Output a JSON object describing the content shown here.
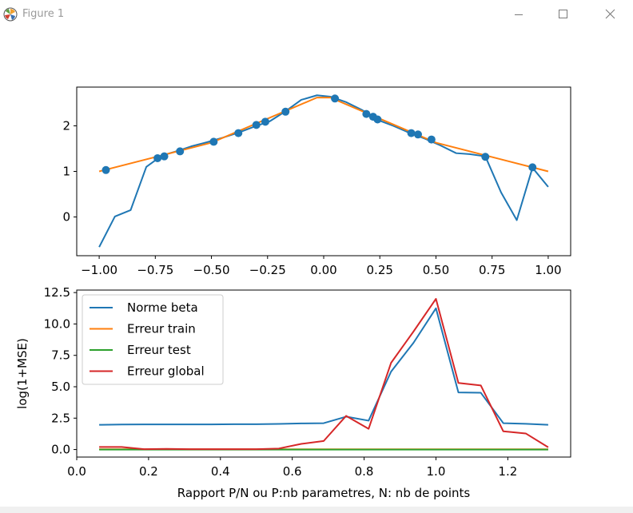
{
  "window": {
    "title": "Figure 1"
  },
  "chart_data": [
    {
      "type": "scatter+line",
      "title": "",
      "xlabel": "",
      "ylabel": "",
      "xlim": [
        -1.1,
        1.1
      ],
      "ylim": [
        -0.85,
        2.85
      ],
      "xticks": [
        -1.0,
        -0.75,
        -0.5,
        -0.25,
        0.0,
        0.25,
        0.5,
        0.75,
        1.0
      ],
      "xtick_labels": [
        "−1.00",
        "−0.75",
        "−0.50",
        "−0.25",
        "0.00",
        "0.25",
        "0.50",
        "0.75",
        "1.00"
      ],
      "yticks": [
        0,
        1,
        2
      ],
      "ytick_labels": [
        "0",
        "1",
        "2"
      ],
      "grid": false,
      "series": [
        {
          "kind": "line",
          "color": "#1f77b4",
          "x": [
            -1.0,
            -0.93,
            -0.86,
            -0.79,
            -0.72,
            -0.65,
            -0.59,
            -0.52,
            -0.45,
            -0.38,
            -0.31,
            -0.24,
            -0.17,
            -0.1,
            -0.03,
            0.03,
            0.1,
            0.17,
            0.24,
            0.31,
            0.38,
            0.45,
            0.52,
            0.59,
            0.65,
            0.72,
            0.79,
            0.86,
            0.93,
            1.0
          ],
          "y": [
            -0.66,
            0.01,
            0.15,
            1.1,
            1.35,
            1.45,
            1.55,
            1.64,
            1.74,
            1.85,
            1.98,
            2.1,
            2.32,
            2.57,
            2.67,
            2.64,
            2.52,
            2.35,
            2.13,
            2.0,
            1.85,
            1.72,
            1.57,
            1.4,
            1.38,
            1.33,
            0.54,
            -0.07,
            1.08,
            0.66
          ]
        },
        {
          "kind": "line",
          "color": "#ff7f0e",
          "x": [
            -1.0,
            -0.5,
            -0.03,
            0.03,
            0.5,
            1.0
          ],
          "y": [
            1.0,
            1.63,
            2.62,
            2.62,
            1.63,
            1.0
          ]
        },
        {
          "kind": "scatter",
          "color": "#1f77b4",
          "x": [
            -0.97,
            -0.74,
            -0.71,
            -0.64,
            -0.49,
            -0.38,
            -0.3,
            -0.26,
            -0.17,
            0.05,
            0.19,
            0.22,
            0.24,
            0.39,
            0.42,
            0.48,
            0.72,
            0.93
          ],
          "y": [
            1.03,
            1.29,
            1.33,
            1.44,
            1.65,
            1.84,
            2.02,
            2.09,
            2.31,
            2.6,
            2.26,
            2.2,
            2.14,
            1.84,
            1.81,
            1.7,
            1.32,
            1.09
          ]
        }
      ]
    },
    {
      "type": "line",
      "title": "",
      "xlabel": "Rapport P/N ou P:nb parametres, N: nb de points",
      "ylabel": "log(1+MSE)",
      "xlim": [
        0.0,
        1.375
      ],
      "ylim": [
        -0.6,
        12.7
      ],
      "xticks": [
        0.0,
        0.2,
        0.4,
        0.6,
        0.8,
        1.0,
        1.2
      ],
      "xtick_labels": [
        "0.0",
        "0.2",
        "0.4",
        "0.6",
        "0.8",
        "1.0",
        "1.2"
      ],
      "yticks": [
        0.0,
        2.5,
        5.0,
        7.5,
        10.0,
        12.5
      ],
      "ytick_labels": [
        "0.0",
        "2.5",
        "5.0",
        "7.5",
        "10.0",
        "12.5"
      ],
      "grid": false,
      "legend": "upper-left",
      "x": [
        0.0625,
        0.125,
        0.1875,
        0.25,
        0.3125,
        0.375,
        0.4375,
        0.5,
        0.5625,
        0.625,
        0.6875,
        0.75,
        0.8125,
        0.875,
        0.9375,
        1.0,
        1.0625,
        1.125,
        1.1875,
        1.25,
        1.3125
      ],
      "series": [
        {
          "name": "Norme beta",
          "color": "#1f77b4",
          "values": [
            1.97,
            1.99,
            2.0,
            2.0,
            2.0,
            2.0,
            2.02,
            2.02,
            2.04,
            2.08,
            2.1,
            2.62,
            2.3,
            6.2,
            8.5,
            11.25,
            4.55,
            4.52,
            2.1,
            2.05,
            1.97
          ]
        },
        {
          "name": "Erreur train",
          "color": "#ff7f0e",
          "values": [
            0.02,
            0.02,
            0.02,
            0.02,
            0.02,
            0.02,
            0.02,
            0.02,
            0.02,
            0.02,
            0.02,
            0.02,
            0.02,
            0.02,
            0.02,
            0.02,
            0.02,
            0.02,
            0.02,
            0.02,
            0.02
          ]
        },
        {
          "name": "Erreur test",
          "color": "#2ca02c",
          "values": [
            0.0,
            0.0,
            0.0,
            0.0,
            0.0,
            0.0,
            0.0,
            0.0,
            0.0,
            0.0,
            0.0,
            0.0,
            0.0,
            0.0,
            0.0,
            0.0,
            0.0,
            0.0,
            0.0,
            0.0,
            0.0
          ]
        },
        {
          "name": "Erreur global",
          "color": "#d62728",
          "values": [
            0.2,
            0.2,
            0.03,
            0.05,
            0.03,
            0.03,
            0.03,
            0.03,
            0.08,
            0.45,
            0.68,
            2.68,
            1.65,
            6.9,
            9.4,
            12.0,
            5.3,
            5.1,
            1.45,
            1.28,
            0.18
          ]
        }
      ]
    }
  ]
}
